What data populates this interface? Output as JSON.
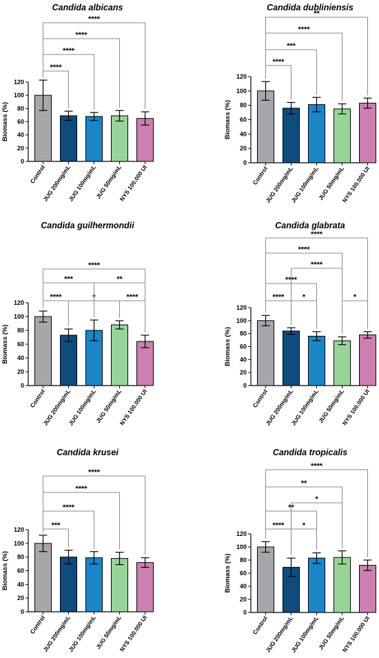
{
  "chart_data": [
    {
      "type": "bar",
      "title": "Candida albicans",
      "ylabel": "Biomass (%)",
      "ylim": [
        0,
        120
      ],
      "yticks": [
        "0",
        "20",
        "40",
        "60",
        "80",
        "100",
        "120"
      ],
      "categories": [
        "Control",
        "JUG 200mg/mL",
        "JUG 100mg/mL",
        "JUG 50mg/mL",
        "NYS 100.000 UI"
      ],
      "values": [
        100,
        69,
        68,
        69,
        65
      ],
      "errors": [
        23,
        7,
        6,
        8,
        10
      ],
      "comparisons": [
        {
          "from": 0,
          "to": 1,
          "label": "****"
        },
        {
          "from": 0,
          "to": 2,
          "label": "****"
        },
        {
          "from": 0,
          "to": 3,
          "label": "****"
        },
        {
          "from": 0,
          "to": 4,
          "label": "****"
        }
      ]
    },
    {
      "type": "bar",
      "title": "Candida dubliniensis",
      "ylabel": "Biomass (%)",
      "ylim": [
        0,
        120
      ],
      "yticks": [
        "0",
        "20",
        "40",
        "60",
        "80",
        "100",
        "120"
      ],
      "categories": [
        "Control",
        "JUG 200mg/mL",
        "JUG 100mg/mL",
        "JUG 50mg/mL",
        "NYS 100.000 UI"
      ],
      "values": [
        100,
        76,
        81,
        75,
        83
      ],
      "errors": [
        13,
        8,
        10,
        7,
        7
      ],
      "comparisons": [
        {
          "from": 0,
          "to": 1,
          "label": "****"
        },
        {
          "from": 0,
          "to": 2,
          "label": "***"
        },
        {
          "from": 0,
          "to": 3,
          "label": "****"
        },
        {
          "from": 0,
          "to": 4,
          "label": "**"
        }
      ]
    },
    {
      "type": "bar",
      "title": "Candida guilhermondii",
      "ylabel": "Biomass (%)",
      "ylim": [
        0,
        120
      ],
      "yticks": [
        "0",
        "20",
        "40",
        "60",
        "80",
        "100",
        "120"
      ],
      "categories": [
        "Control",
        "JUG 200mg/mL",
        "JUG 100mg/mL",
        "JUG 50mg/mL",
        "NYS 100.000 UI"
      ],
      "values": [
        100,
        73,
        80,
        88,
        64
      ],
      "errors": [
        8,
        9,
        15,
        6,
        9
      ],
      "comparisons": [
        {
          "from": 0,
          "to": 1,
          "label": "****"
        },
        {
          "from": 1,
          "to": 3,
          "label": "*"
        },
        {
          "from": 3,
          "to": 4,
          "label": "****"
        },
        {
          "from": 0,
          "to": 2,
          "label": "***"
        },
        {
          "from": 2,
          "to": 4,
          "label": "**"
        },
        {
          "from": 0,
          "to": 4,
          "label": "****"
        }
      ]
    },
    {
      "type": "bar",
      "title": "Candida glabrata",
      "ylabel": "Biomass (%)",
      "ylim": [
        0,
        120
      ],
      "yticks": [
        "0",
        "20",
        "40",
        "60",
        "80",
        "100",
        "120"
      ],
      "categories": [
        "Control",
        "JUG 200mg/mL",
        "JUG 100mg/mL",
        "JUG 50mg/mL",
        "NYS 100.000 UI"
      ],
      "values": [
        100,
        84,
        76,
        69,
        78
      ],
      "errors": [
        8,
        5,
        7,
        6,
        5
      ],
      "comparisons": [
        {
          "from": 0,
          "to": 1,
          "label": "****"
        },
        {
          "from": 1,
          "to": 2,
          "label": "*"
        },
        {
          "from": 3,
          "to": 4,
          "label": "*"
        },
        {
          "from": 0,
          "to": 2,
          "label": "****"
        },
        {
          "from": 1,
          "to": 3,
          "label": "****"
        },
        {
          "from": 0,
          "to": 3,
          "label": "****"
        },
        {
          "from": 0,
          "to": 4,
          "label": "****"
        }
      ]
    },
    {
      "type": "bar",
      "title": "Candida krusei",
      "ylabel": "Biomass (%)",
      "ylim": [
        0,
        120
      ],
      "yticks": [
        "0",
        "20",
        "40",
        "60",
        "80",
        "100",
        "120"
      ],
      "categories": [
        "Control",
        "JUG 200mg/mL",
        "JUG 100mg/mL",
        "JUG 50mg/mL",
        "NYS 100.000 UI"
      ],
      "values": [
        100,
        80,
        79,
        78,
        72
      ],
      "errors": [
        12,
        10,
        9,
        9,
        7
      ],
      "comparisons": [
        {
          "from": 0,
          "to": 1,
          "label": "***"
        },
        {
          "from": 0,
          "to": 2,
          "label": "****"
        },
        {
          "from": 0,
          "to": 3,
          "label": "****"
        },
        {
          "from": 0,
          "to": 4,
          "label": "****"
        }
      ]
    },
    {
      "type": "bar",
      "title": "Candida tropicalis",
      "ylabel": "Biomass (%)",
      "ylim": [
        0,
        120
      ],
      "yticks": [
        "0",
        "20",
        "40",
        "60",
        "80",
        "100",
        "120"
      ],
      "categories": [
        "Control",
        "JUG 200mg/mL",
        "JUG 100mg/mL",
        "JUG 50mg/mL",
        "NYS 100.000 UI"
      ],
      "values": [
        100,
        69,
        83,
        84,
        72
      ],
      "errors": [
        8,
        14,
        8,
        10,
        8
      ],
      "comparisons": [
        {
          "from": 0,
          "to": 1,
          "label": "****"
        },
        {
          "from": 1,
          "to": 2,
          "label": "*"
        },
        {
          "from": 0,
          "to": 2,
          "label": "**"
        },
        {
          "from": 1,
          "to": 3,
          "label": "*"
        },
        {
          "from": 0,
          "to": 3,
          "label": "**"
        },
        {
          "from": 0,
          "to": 4,
          "label": "****"
        }
      ]
    }
  ],
  "bar_colors": [
    "#a8a6ab",
    "#0f4c7d",
    "#1a86c8",
    "#98d49a",
    "#cb80b1"
  ]
}
